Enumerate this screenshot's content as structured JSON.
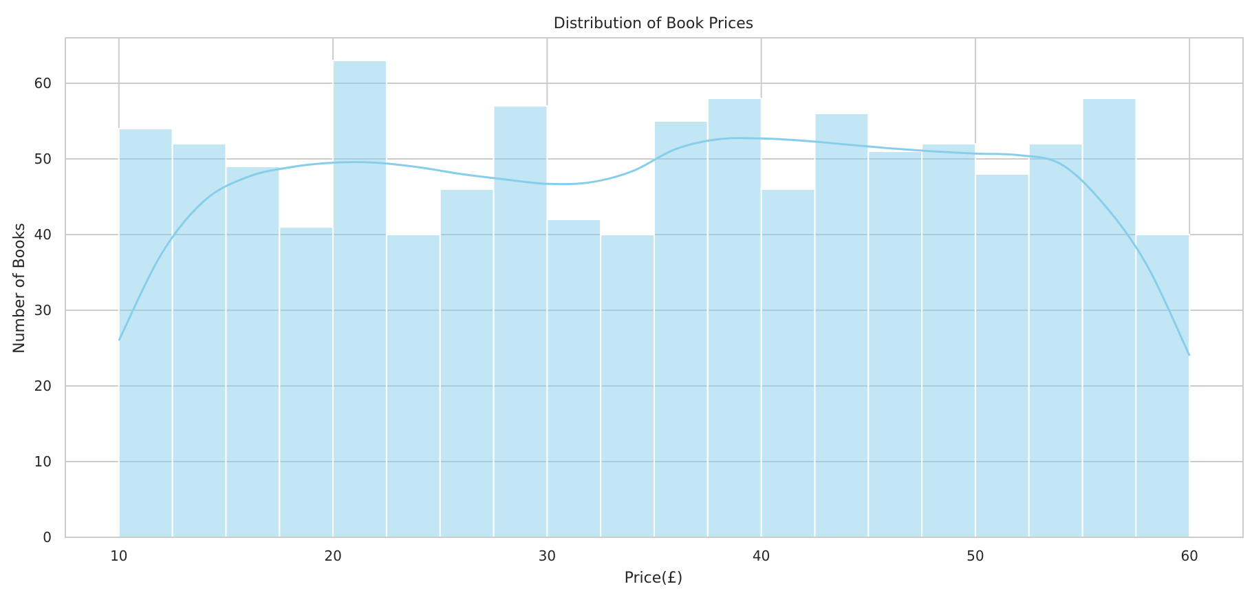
{
  "chart_data": {
    "type": "bar",
    "title": "Distribution of Book Prices",
    "xlabel": "Price(£)",
    "ylabel": "Number of Books",
    "xlim": [
      7.5,
      62.5
    ],
    "ylim": [
      0,
      66
    ],
    "x_ticks": [
      10,
      20,
      30,
      40,
      50,
      60
    ],
    "y_ticks": [
      0,
      10,
      20,
      30,
      40,
      50,
      60
    ],
    "bin_edges": [
      10,
      12.5,
      15,
      17.5,
      20,
      22.5,
      25,
      27.5,
      30,
      32.5,
      35,
      37.5,
      40,
      42.5,
      45,
      47.5,
      50,
      52.5,
      55,
      57.5,
      60
    ],
    "counts": [
      54,
      52,
      49,
      41,
      63,
      40,
      46,
      57,
      42,
      40,
      55,
      58,
      46,
      56,
      51,
      52,
      48,
      52,
      58,
      40
    ],
    "kde": {
      "x": [
        10,
        12,
        14,
        16,
        18,
        20,
        22,
        24,
        26,
        28,
        30,
        32,
        34,
        36,
        38,
        40,
        42,
        44,
        46,
        48,
        50,
        52,
        54,
        56,
        58,
        60
      ],
      "y": [
        26,
        37.5,
        44.5,
        47.6,
        48.9,
        49.5,
        49.5,
        48.9,
        48.0,
        47.3,
        46.7,
        46.9,
        48.4,
        51.3,
        52.6,
        52.7,
        52.4,
        51.9,
        51.4,
        51.0,
        50.7,
        50.5,
        49.3,
        44,
        36,
        24
      ]
    },
    "bar_color": "#87ceeb",
    "bar_opacity": 0.5,
    "line_color": "#87ceeb",
    "grid": true,
    "legend": "none"
  }
}
